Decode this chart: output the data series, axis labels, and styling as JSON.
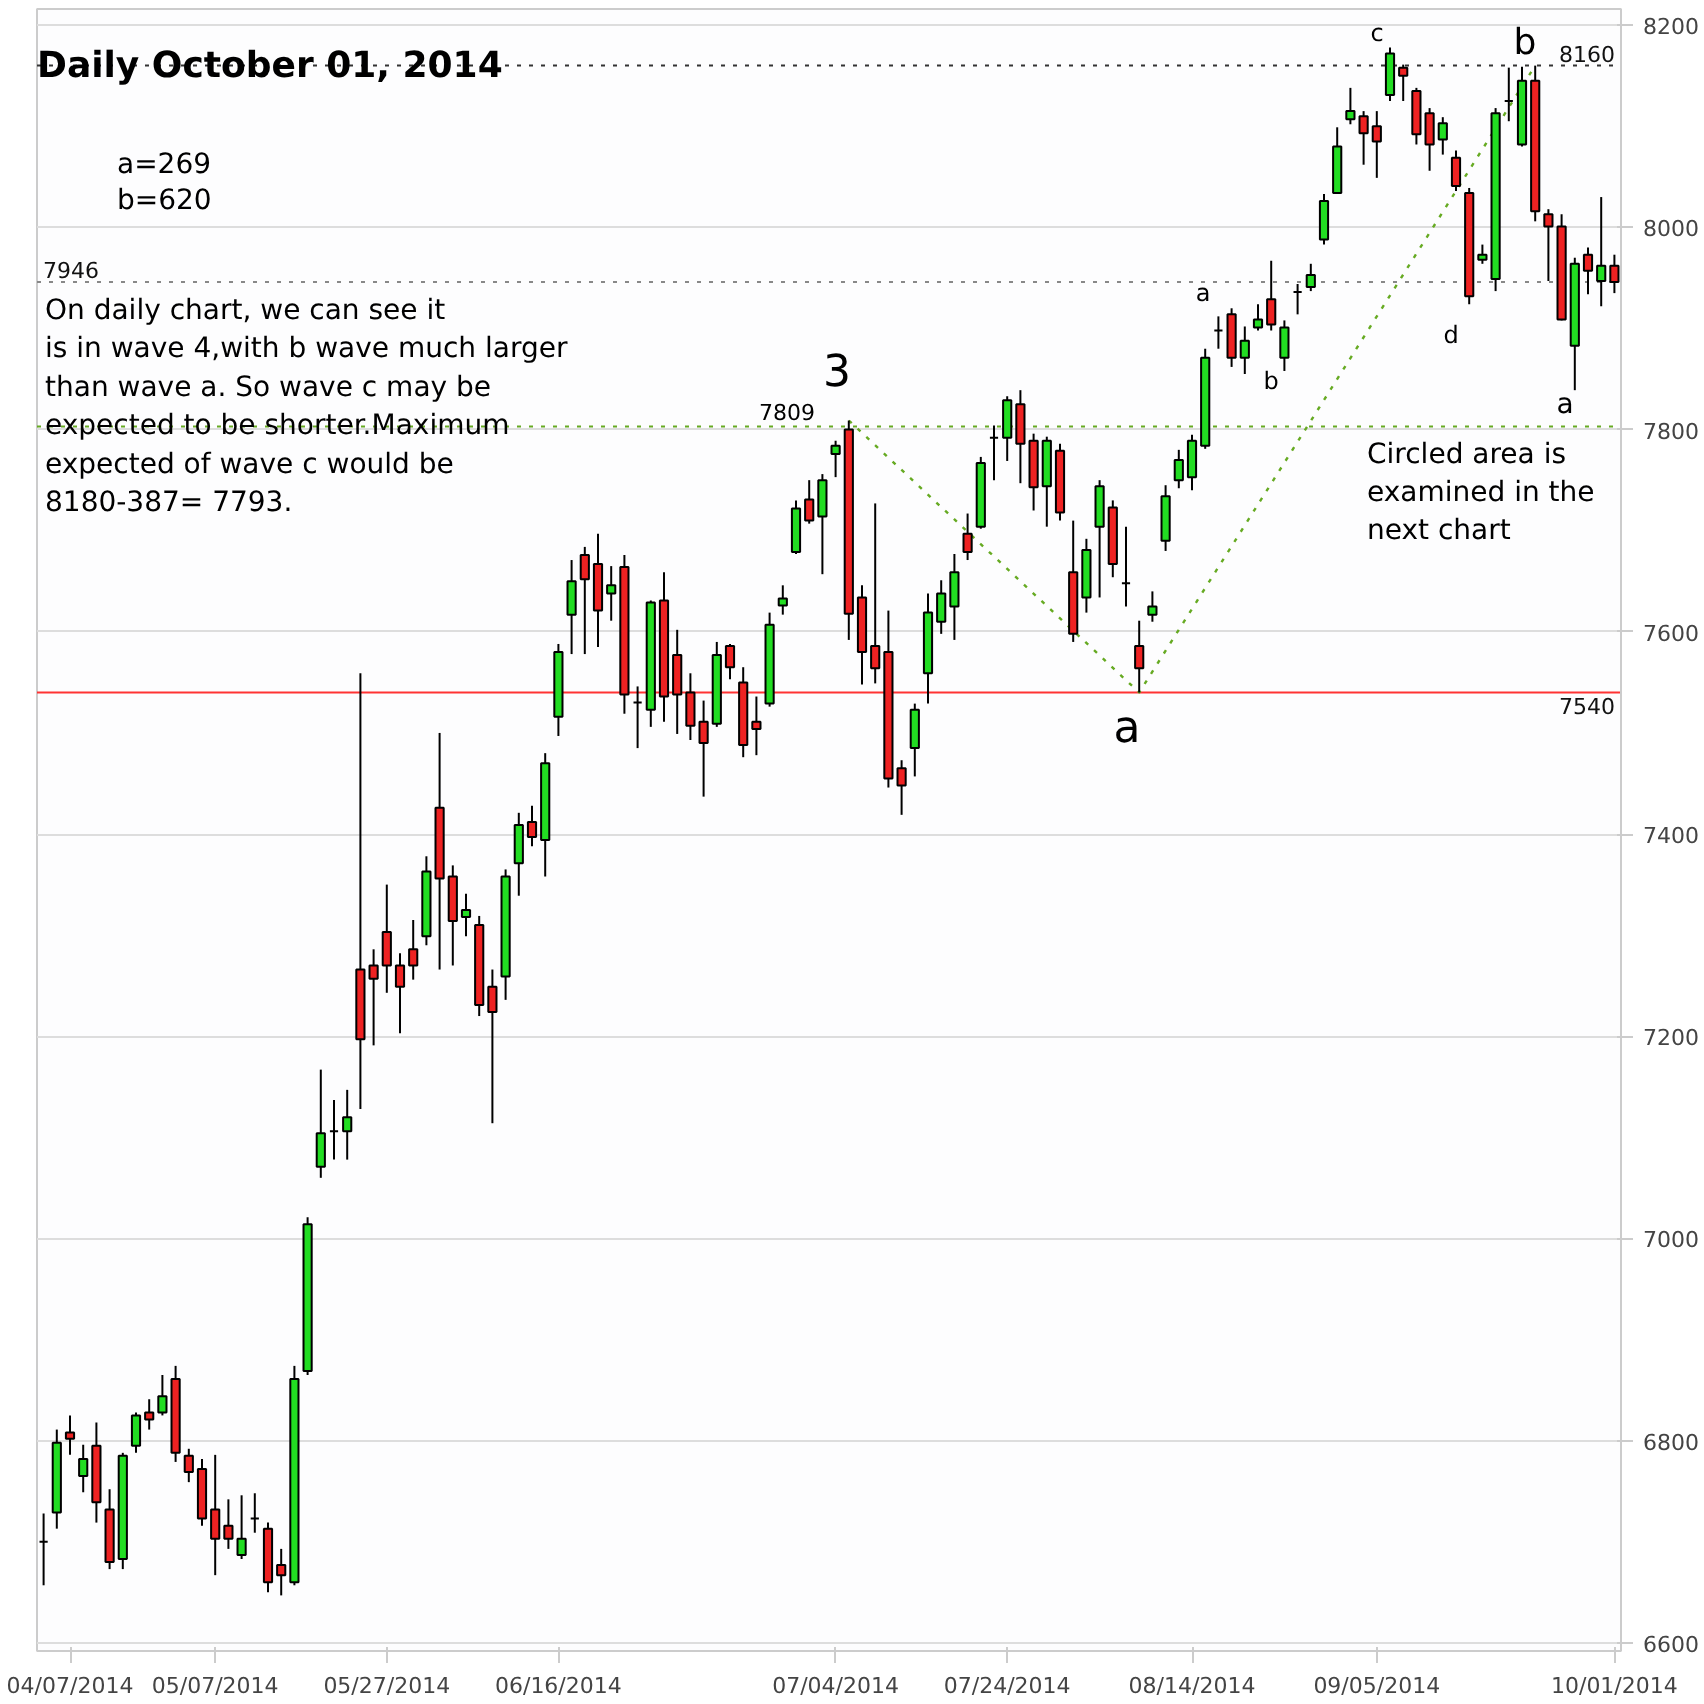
{
  "chart_data": {
    "type": "candlestick",
    "title": "Daily October 01, 2014",
    "ylim": [
      6592,
      8216
    ],
    "yticks": [
      6600,
      6800,
      7000,
      7200,
      7400,
      7600,
      7800,
      8000,
      8200
    ],
    "grid": "y",
    "categories": [
      null,
      null,
      "04/07/2014",
      null,
      null,
      null,
      null,
      null,
      null,
      null,
      null,
      null,
      null,
      "05/07/2014",
      null,
      null,
      null,
      null,
      null,
      null,
      null,
      null,
      null,
      null,
      null,
      null,
      "05/27/2014",
      null,
      null,
      null,
      null,
      null,
      null,
      null,
      null,
      null,
      null,
      null,
      null,
      "06/16/2014",
      null,
      null,
      null,
      null,
      null,
      null,
      null,
      null,
      null,
      null,
      null,
      null,
      null,
      null,
      null,
      null,
      null,
      null,
      null,
      null,
      "07/04/2014",
      null,
      null,
      null,
      null,
      null,
      null,
      null,
      null,
      null,
      null,
      null,
      null,
      "07/24/2014",
      null,
      null,
      null,
      null,
      null,
      null,
      null,
      null,
      null,
      null,
      null,
      null,
      null,
      "08/14/2014",
      null,
      null,
      null,
      null,
      null,
      null,
      null,
      null,
      null,
      null,
      null,
      null,
      null,
      "09/05/2014",
      null,
      null,
      null,
      null,
      null,
      null,
      null,
      null,
      null,
      null,
      null,
      null,
      null,
      null,
      null,
      null,
      null,
      "10/01/2014"
    ],
    "ohlc": [
      [
        6700,
        6728,
        6657,
        6700
      ],
      [
        6729,
        6811,
        6713,
        6798
      ],
      [
        6808,
        6825,
        6786,
        6802
      ],
      [
        6765,
        6796,
        6749,
        6782
      ],
      [
        6795,
        6818,
        6719,
        6739
      ],
      [
        6732,
        6752,
        6673,
        6680
      ],
      [
        6683,
        6788,
        6673,
        6785
      ],
      [
        6795,
        6828,
        6788,
        6825
      ],
      [
        6828,
        6841,
        6811,
        6821
      ],
      [
        6828,
        6865,
        6825,
        6844
      ],
      [
        6861,
        6874,
        6779,
        6788
      ],
      [
        6785,
        6792,
        6759,
        6769
      ],
      [
        6772,
        6782,
        6716,
        6723
      ],
      [
        6732,
        6786,
        6667,
        6703
      ],
      [
        6716,
        6742,
        6693,
        6703
      ],
      [
        6687,
        6746,
        6683,
        6703
      ],
      [
        6723,
        6748,
        6709,
        6723
      ],
      [
        6713,
        6719,
        6650,
        6660
      ],
      [
        6677,
        6693,
        6647,
        6667
      ],
      [
        6660,
        6874,
        6657,
        6861
      ],
      [
        6869,
        7021,
        6865,
        7014
      ],
      [
        7071,
        7167,
        7060,
        7104
      ],
      [
        7106,
        7137,
        7078,
        7106
      ],
      [
        7106,
        7147,
        7078,
        7120
      ],
      [
        7266,
        7559,
        7128,
        7197
      ],
      [
        7270,
        7286,
        7191,
        7257
      ],
      [
        7303,
        7350,
        7243,
        7270
      ],
      [
        7270,
        7282,
        7203,
        7249
      ],
      [
        7286,
        7315,
        7256,
        7270
      ],
      [
        7299,
        7378,
        7290,
        7363
      ],
      [
        7426,
        7500,
        7266,
        7356
      ],
      [
        7358,
        7369,
        7270,
        7314
      ],
      [
        7318,
        7341,
        7299,
        7325
      ],
      [
        7310,
        7319,
        7220,
        7231
      ],
      [
        7249,
        7266,
        7114,
        7224
      ],
      [
        7259,
        7365,
        7236,
        7358
      ],
      [
        7371,
        7421,
        7339,
        7409
      ],
      [
        7412,
        7428,
        7388,
        7397
      ],
      [
        7394,
        7480,
        7358,
        7470
      ],
      [
        7516,
        7588,
        7497,
        7580
      ],
      [
        7617,
        7671,
        7578,
        7650
      ],
      [
        7676,
        7684,
        7578,
        7652
      ],
      [
        7667,
        7697,
        7585,
        7621
      ],
      [
        7638,
        7665,
        7611,
        7646
      ],
      [
        7664,
        7676,
        7519,
        7538
      ],
      [
        7530,
        7546,
        7485,
        7530
      ],
      [
        7523,
        7631,
        7506,
        7629
      ],
      [
        7631,
        7659,
        7511,
        7536
      ],
      [
        7577,
        7602,
        7499,
        7538
      ],
      [
        7540,
        7559,
        7493,
        7507
      ],
      [
        7511,
        7532,
        7437,
        7490
      ],
      [
        7509,
        7590,
        7506,
        7577
      ],
      [
        7586,
        7588,
        7553,
        7565
      ],
      [
        7550,
        7565,
        7476,
        7488
      ],
      [
        7511,
        7536,
        7478,
        7504
      ],
      [
        7529,
        7619,
        7526,
        7607
      ],
      [
        7626,
        7646,
        7617,
        7633
      ],
      [
        7679,
        7730,
        7677,
        7722
      ],
      [
        7731,
        7750,
        7707,
        7710
      ],
      [
        7714,
        7756,
        7657,
        7750
      ],
      [
        7776,
        7789,
        7753,
        7784
      ],
      [
        7800,
        7809,
        7592,
        7618
      ],
      [
        7634,
        7646,
        7548,
        7580
      ],
      [
        7586,
        7727,
        7549,
        7564
      ],
      [
        7580,
        7621,
        7446,
        7455
      ],
      [
        7465,
        7473,
        7419,
        7448
      ],
      [
        7485,
        7529,
        7457,
        7523
      ],
      [
        7559,
        7638,
        7529,
        7619
      ],
      [
        7610,
        7651,
        7598,
        7638
      ],
      [
        7625,
        7677,
        7592,
        7659
      ],
      [
        7697,
        7717,
        7671,
        7679
      ],
      [
        7704,
        7773,
        7702,
        7767
      ],
      [
        7792,
        7804,
        7750,
        7792
      ],
      [
        7792,
        7833,
        7769,
        7829
      ],
      [
        7825,
        7839,
        7747,
        7786
      ],
      [
        7789,
        7796,
        7720,
        7743
      ],
      [
        7744,
        7793,
        7704,
        7789
      ],
      [
        7779,
        7786,
        7710,
        7718
      ],
      [
        7659,
        7710,
        7590,
        7598
      ],
      [
        7634,
        7692,
        7619,
        7681
      ],
      [
        7704,
        7750,
        7634,
        7744
      ],
      [
        7723,
        7730,
        7654,
        7667
      ],
      [
        7648,
        7704,
        7625,
        7648
      ],
      [
        7586,
        7611,
        7540,
        7564
      ],
      [
        7617,
        7640,
        7610,
        7625
      ],
      [
        7690,
        7745,
        7680,
        7734
      ],
      [
        7750,
        7780,
        7742,
        7770
      ],
      [
        7753,
        7795,
        7740,
        7789
      ],
      [
        7784,
        7880,
        7781,
        7871
      ],
      [
        7898,
        7912,
        7880,
        7898
      ],
      [
        7914,
        7920,
        7862,
        7871
      ],
      [
        7871,
        7902,
        7855,
        7888
      ],
      [
        7901,
        7924,
        7898,
        7909
      ],
      [
        7929,
        7967,
        7898,
        7904
      ],
      [
        7871,
        7908,
        7858,
        7901
      ],
      [
        7936,
        7944,
        7914,
        7936
      ],
      [
        7941,
        7964,
        7937,
        7953
      ],
      [
        7988,
        8033,
        7983,
        8026
      ],
      [
        8034,
        8099,
        8033,
        8080
      ],
      [
        8107,
        8138,
        8102,
        8115
      ],
      [
        8110,
        8115,
        8062,
        8093
      ],
      [
        8100,
        8115,
        8049,
        8085
      ],
      [
        8131,
        8178,
        8125,
        8172
      ],
      [
        8158,
        8161,
        8125,
        8150
      ],
      [
        8135,
        8138,
        8082,
        8092
      ],
      [
        8113,
        8118,
        8056,
        8082
      ],
      [
        8087,
        8109,
        8072,
        8103
      ],
      [
        8069,
        8076,
        8036,
        8041
      ],
      [
        8034,
        8039,
        7924,
        7932
      ],
      [
        7968,
        7983,
        7964,
        7973
      ],
      [
        7949,
        8118,
        7937,
        8113
      ],
      [
        8125,
        8158,
        8105,
        8125
      ],
      [
        8082,
        8159,
        8080,
        8145
      ],
      [
        8145,
        8160,
        8006,
        8016
      ],
      [
        8013,
        8018,
        7947,
        8001
      ],
      [
        8001,
        8013,
        7908,
        7909
      ],
      [
        7883,
        7970,
        7839,
        7964
      ],
      [
        7973,
        7980,
        7934,
        7957
      ],
      [
        7947,
        8030,
        7922,
        7962
      ],
      [
        7962,
        7973,
        7935,
        7946
      ]
    ],
    "colors": [
      "#000000",
      "#22dd22",
      "#ee2222",
      "#22dd22",
      "#ee2222",
      "#ee2222",
      "#22dd22",
      "#22dd22",
      "#ee2222",
      "#22dd22",
      "#ee2222",
      "#ee2222",
      "#ee2222",
      "#ee2222",
      "#ee2222",
      "#22dd22",
      "#000000",
      "#ee2222",
      "#ee2222",
      "#22dd22",
      "#22dd22",
      "#22dd22",
      "#000000",
      "#22dd22",
      "#ee2222",
      "#ee2222",
      "#ee2222",
      "#ee2222",
      "#ee2222",
      "#22dd22",
      "#ee2222",
      "#ee2222",
      "#22dd22",
      "#ee2222",
      "#ee2222",
      "#22dd22",
      "#22dd22",
      "#ee2222",
      "#22dd22",
      "#22dd22",
      "#22dd22",
      "#ee2222",
      "#ee2222",
      "#22dd22",
      "#ee2222",
      "#000000",
      "#22dd22",
      "#ee2222",
      "#ee2222",
      "#ee2222",
      "#ee2222",
      "#22dd22",
      "#ee2222",
      "#ee2222",
      "#ee2222",
      "#22dd22",
      "#22dd22",
      "#22dd22",
      "#ee2222",
      "#22dd22",
      "#22dd22",
      "#ee2222",
      "#ee2222",
      "#ee2222",
      "#ee2222",
      "#ee2222",
      "#22dd22",
      "#22dd22",
      "#22dd22",
      "#22dd22",
      "#ee2222",
      "#22dd22",
      "#000000",
      "#22dd22",
      "#ee2222",
      "#ee2222",
      "#22dd22",
      "#ee2222",
      "#ee2222",
      "#22dd22",
      "#22dd22",
      "#ee2222",
      "#000000",
      "#ee2222",
      "#22dd22",
      "#22dd22",
      "#22dd22",
      "#22dd22",
      "#22dd22",
      "#000000",
      "#ee2222",
      "#22dd22",
      "#22dd22",
      "#ee2222",
      "#22dd22",
      "#000000",
      "#22dd22",
      "#22dd22",
      "#22dd22",
      "#22dd22",
      "#ee2222",
      "#ee2222",
      "#22dd22",
      "#ee2222",
      "#ee2222",
      "#ee2222",
      "#22dd22",
      "#ee2222",
      "#ee2222",
      "#22dd22",
      "#22dd22",
      "#000000",
      "#22dd22",
      "#ee2222",
      "#ee2222",
      "#ee2222",
      "#22dd22",
      "#ee2222",
      "#22dd22",
      "#ee2222"
    ],
    "series": [
      {
        "type": "line",
        "color": "#66aa22",
        "line_style": "dotted",
        "values": [
          null,
          null,
          null,
          null,
          null,
          null,
          null,
          null,
          null,
          null,
          null,
          null,
          null,
          null,
          null,
          null,
          null,
          null,
          null,
          null,
          null,
          null,
          null,
          null,
          null,
          null,
          null,
          null,
          null,
          null,
          null,
          null,
          null,
          null,
          null,
          null,
          null,
          null,
          null,
          null,
          null,
          null,
          null,
          null,
          null,
          null,
          null,
          null,
          null,
          null,
          null,
          null,
          null,
          null,
          null,
          null,
          null,
          null,
          null,
          null,
          null,
          7809,
          null,
          null,
          null,
          null,
          null,
          null,
          null,
          null,
          null,
          null,
          null,
          null,
          null,
          null,
          null,
          null,
          null,
          null,
          null,
          null,
          null,
          7540,
          null,
          null,
          null,
          null,
          null,
          null,
          null,
          null,
          null,
          null,
          null,
          null,
          null,
          null,
          null,
          null,
          null,
          null,
          null,
          null,
          null,
          null,
          null,
          null,
          null,
          null,
          null,
          null,
          null,
          8160,
          null,
          null,
          null,
          null,
          null,
          null
        ]
      }
    ],
    "ref_lines": [
      {
        "axis": "y",
        "value": 8160,
        "label": "8160",
        "color": "#333333",
        "line_style": "dotted"
      },
      {
        "axis": "y",
        "value": 7946,
        "label": "7946",
        "color": "#888888",
        "line_style": "dotted"
      },
      {
        "axis": "y",
        "value": 7803,
        "label": null,
        "color": "#66aa22",
        "line_style": "dotted"
      },
      {
        "axis": "y",
        "value": 7540,
        "label": "7540",
        "color": "#ff3333",
        "line_style": "solid"
      }
    ],
    "annotations": [
      "a=269",
      "b=620",
      "On daily chart, we can see it\nis in wave 4,with b wave much larger\nthan wave a. So wave c may be\nexpected to be shorter.Maximum\nexpected of wave c would be\n8180-387= 7793.",
      "Circled area is\nexamined in the\nnext chart",
      "3",
      "7809",
      "a",
      "c",
      "b",
      "a",
      "b",
      "d",
      "a"
    ]
  }
}
